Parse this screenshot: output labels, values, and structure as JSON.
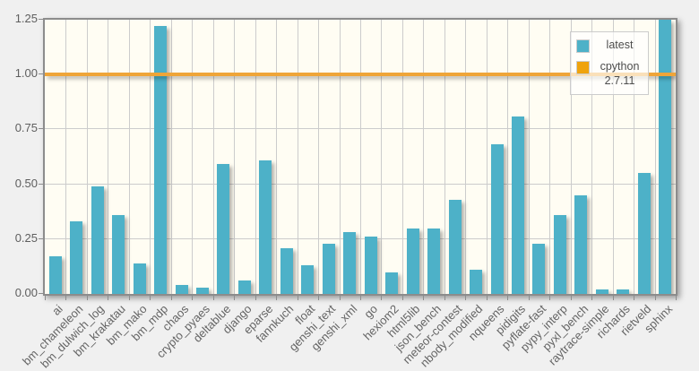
{
  "colors": {
    "page_bg": "#f0f0f0",
    "plot_bg": "#fffdf3",
    "grid": "#cccccc",
    "frame_border": "#8c8c8c",
    "bar": "#4db1c8",
    "reference_line": "#efa538",
    "tick_text": "#5e5e5e",
    "legend_text": "#4d4d4d"
  },
  "legend": {
    "items": [
      {
        "label": "latest",
        "color": "#4db1c8"
      },
      {
        "label": "cpython 2.7.11",
        "color": "#efa30e"
      }
    ]
  },
  "chart_data": {
    "type": "bar",
    "title": "",
    "xlabel": "",
    "ylabel": "",
    "ylim": [
      0,
      1.25
    ],
    "yticks": [
      0,
      0.25,
      0.5,
      0.75,
      1.0,
      1.25
    ],
    "ytick_labels": [
      "0.00",
      "0.25",
      "0.50",
      "0.75",
      "1.00",
      "1.25"
    ],
    "grid": true,
    "legend_position": "top-right",
    "series_name": "latest",
    "reference_line": {
      "name": "cpython 2.7.11",
      "value": 1.0
    },
    "categories": [
      "ai",
      "bm_chameleon",
      "bm_dulwich_log",
      "bm_krakatau",
      "bm_mako",
      "bm_mdp",
      "chaos",
      "crypto_pyaes",
      "deltablue",
      "django",
      "eparse",
      "fannkuch",
      "float",
      "genshi_text",
      "genshi_xml",
      "go",
      "hexiom2",
      "html5lib",
      "json_bench",
      "meteor-contest",
      "nbody_modified",
      "nqueens",
      "pidigits",
      "pyflate-fast",
      "pypy_interp",
      "pyxl_bench",
      "raytrace-simple",
      "richards",
      "rietveld",
      "sphinx"
    ],
    "values": [
      0.17,
      0.33,
      0.49,
      0.36,
      0.14,
      1.22,
      0.04,
      0.03,
      0.59,
      0.06,
      0.61,
      0.21,
      0.13,
      0.23,
      0.28,
      0.26,
      0.1,
      0.3,
      0.3,
      0.43,
      0.11,
      0.68,
      0.81,
      0.23,
      0.36,
      0.45,
      0.02,
      0.02,
      0.55,
      1.26
    ]
  }
}
